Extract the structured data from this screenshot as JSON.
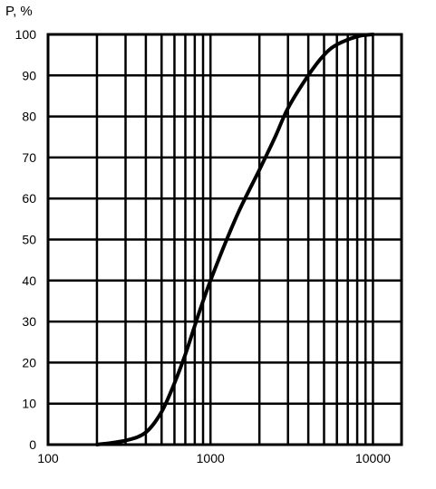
{
  "chart_data": {
    "type": "line",
    "title": "",
    "ylabel": "P, %",
    "xlabel": "",
    "x_scale": "log",
    "xlim": [
      100,
      15000
    ],
    "ylim": [
      0,
      100
    ],
    "grid": true,
    "x_tick_labels": [
      {
        "value": 100,
        "label": "100"
      },
      {
        "value": 1000,
        "label": "1000"
      },
      {
        "value": 10000,
        "label": "10000"
      }
    ],
    "x_gridlines": [
      200,
      300,
      400,
      500,
      600,
      700,
      800,
      900,
      1000,
      2000,
      3000,
      4000,
      5000,
      6000,
      7000,
      8000,
      9000,
      10000,
      15000
    ],
    "y_ticks": [
      0,
      10,
      20,
      30,
      40,
      50,
      60,
      70,
      80,
      90,
      100
    ],
    "y_tick_labels": [
      "0",
      "10",
      "20",
      "30",
      "40",
      "50",
      "60",
      "70",
      "80",
      "90",
      "100"
    ],
    "series": [
      {
        "color": "#000000",
        "x": [
          200,
          300,
          400,
          500,
          600,
          700,
          800,
          900,
          1000,
          1200,
          1500,
          2000,
          2500,
          3000,
          4000,
          5000,
          6000,
          8000,
          10000
        ],
        "y": [
          0,
          1,
          3,
          8,
          15,
          22,
          29,
          35,
          40,
          48,
          57,
          67,
          75,
          82,
          90,
          95,
          97.5,
          99.5,
          100
        ]
      }
    ]
  }
}
